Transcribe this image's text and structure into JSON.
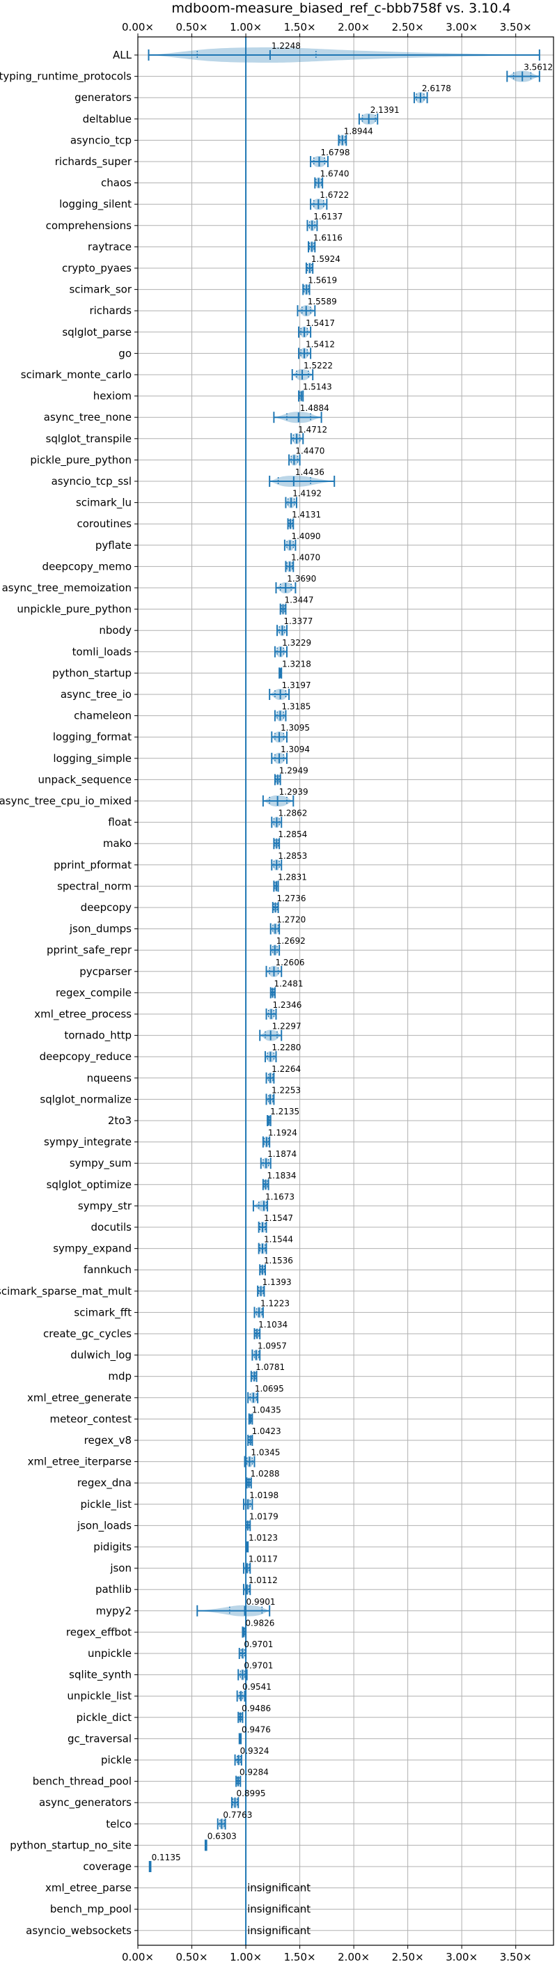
{
  "chart_data": {
    "type": "violin",
    "title": "mdboom-measure_biased_ref_c-bbb758f vs. 3.10.4",
    "xlim": [
      0.0,
      3.85
    ],
    "x_ticks": [
      0,
      0.5,
      1,
      1.5,
      2,
      2.5,
      3,
      3.5
    ],
    "x_tick_labels": [
      "0.00×",
      "0.50×",
      "1.00×",
      "1.50×",
      "2.00×",
      "2.50×",
      "3.00×",
      "3.50×"
    ],
    "reference_line": 1.0,
    "grid": true,
    "insignificant_label": "insignificant",
    "benchmarks": [
      {
        "name": "ALL",
        "label": "1.2248",
        "mean": 1.2248,
        "min": 0.1,
        "max": 3.72,
        "lo": 0.55,
        "hi": 1.65
      },
      {
        "name": "typing_runtime_protocols",
        "label": "3.5612",
        "mean": 3.5612,
        "min": 3.42,
        "max": 3.72,
        "lo": 3.48,
        "hi": 3.64
      },
      {
        "name": "generators",
        "label": "2.6178",
        "mean": 2.6178,
        "min": 2.56,
        "max": 2.68,
        "lo": 2.58,
        "hi": 2.65
      },
      {
        "name": "deltablue",
        "label": "2.1391",
        "mean": 2.1391,
        "min": 2.05,
        "max": 2.22,
        "lo": 2.08,
        "hi": 2.2
      },
      {
        "name": "asyncio_tcp",
        "label": "1.8944",
        "mean": 1.8944,
        "min": 1.86,
        "max": 1.93,
        "lo": 1.87,
        "hi": 1.92
      },
      {
        "name": "richards_super",
        "label": "1.6798",
        "mean": 1.6798,
        "min": 1.6,
        "max": 1.76,
        "lo": 1.63,
        "hi": 1.73
      },
      {
        "name": "chaos",
        "label": "1.6740",
        "mean": 1.674,
        "min": 1.64,
        "max": 1.71,
        "lo": 1.65,
        "hi": 1.7
      },
      {
        "name": "logging_silent",
        "label": "1.6722",
        "mean": 1.6722,
        "min": 1.6,
        "max": 1.75,
        "lo": 1.63,
        "hi": 1.72
      },
      {
        "name": "comprehensions",
        "label": "1.6137",
        "mean": 1.6137,
        "min": 1.57,
        "max": 1.66,
        "lo": 1.59,
        "hi": 1.64
      },
      {
        "name": "raytrace",
        "label": "1.6116",
        "mean": 1.6116,
        "min": 1.58,
        "max": 1.64,
        "lo": 1.59,
        "hi": 1.63
      },
      {
        "name": "crypto_pyaes",
        "label": "1.5924",
        "mean": 1.5924,
        "min": 1.56,
        "max": 1.62,
        "lo": 1.57,
        "hi": 1.61
      },
      {
        "name": "scimark_sor",
        "label": "1.5619",
        "mean": 1.5619,
        "min": 1.53,
        "max": 1.59,
        "lo": 1.54,
        "hi": 1.58
      },
      {
        "name": "richards",
        "label": "1.5589",
        "mean": 1.5589,
        "min": 1.48,
        "max": 1.64,
        "lo": 1.52,
        "hi": 1.6
      },
      {
        "name": "sqlglot_parse",
        "label": "1.5417",
        "mean": 1.5417,
        "min": 1.49,
        "max": 1.6,
        "lo": 1.51,
        "hi": 1.57
      },
      {
        "name": "go",
        "label": "1.5412",
        "mean": 1.5412,
        "min": 1.49,
        "max": 1.6,
        "lo": 1.51,
        "hi": 1.57
      },
      {
        "name": "scimark_monte_carlo",
        "label": "1.5222",
        "mean": 1.5222,
        "min": 1.43,
        "max": 1.62,
        "lo": 1.47,
        "hi": 1.58
      },
      {
        "name": "hexiom",
        "label": "1.5143",
        "mean": 1.5143,
        "min": 1.49,
        "max": 1.53,
        "lo": 1.5,
        "hi": 1.53
      },
      {
        "name": "async_tree_none",
        "label": "1.4884",
        "mean": 1.4884,
        "min": 1.26,
        "max": 1.7,
        "lo": 1.38,
        "hi": 1.6
      },
      {
        "name": "sqlglot_transpile",
        "label": "1.4712",
        "mean": 1.4712,
        "min": 1.42,
        "max": 1.53,
        "lo": 1.44,
        "hi": 1.5
      },
      {
        "name": "pickle_pure_python",
        "label": "1.4470",
        "mean": 1.447,
        "min": 1.4,
        "max": 1.5,
        "lo": 1.42,
        "hi": 1.48
      },
      {
        "name": "asyncio_tcp_ssl",
        "label": "1.4436",
        "mean": 1.4436,
        "min": 1.22,
        "max": 1.82,
        "lo": 1.3,
        "hi": 1.6
      },
      {
        "name": "scimark_lu",
        "label": "1.4192",
        "mean": 1.4192,
        "min": 1.37,
        "max": 1.47,
        "lo": 1.39,
        "hi": 1.45
      },
      {
        "name": "coroutines",
        "label": "1.4131",
        "mean": 1.4131,
        "min": 1.39,
        "max": 1.44,
        "lo": 1.4,
        "hi": 1.43
      },
      {
        "name": "pyflate",
        "label": "1.4090",
        "mean": 1.409,
        "min": 1.36,
        "max": 1.46,
        "lo": 1.38,
        "hi": 1.44
      },
      {
        "name": "deepcopy_memo",
        "label": "1.4070",
        "mean": 1.407,
        "min": 1.37,
        "max": 1.44,
        "lo": 1.38,
        "hi": 1.43
      },
      {
        "name": "async_tree_memoization",
        "label": "1.3690",
        "mean": 1.369,
        "min": 1.28,
        "max": 1.46,
        "lo": 1.32,
        "hi": 1.42
      },
      {
        "name": "unpickle_pure_python",
        "label": "1.3447",
        "mean": 1.3447,
        "min": 1.32,
        "max": 1.37,
        "lo": 1.33,
        "hi": 1.36
      },
      {
        "name": "nbody",
        "label": "1.3377",
        "mean": 1.3377,
        "min": 1.29,
        "max": 1.38,
        "lo": 1.31,
        "hi": 1.36
      },
      {
        "name": "tomli_loads",
        "label": "1.3229",
        "mean": 1.3229,
        "min": 1.27,
        "max": 1.38,
        "lo": 1.29,
        "hi": 1.35
      },
      {
        "name": "python_startup",
        "label": "1.3218",
        "mean": 1.3218,
        "min": 1.31,
        "max": 1.33,
        "lo": 1.315,
        "hi": 1.33
      },
      {
        "name": "async_tree_io",
        "label": "1.3197",
        "mean": 1.3197,
        "min": 1.22,
        "max": 1.4,
        "lo": 1.27,
        "hi": 1.37
      },
      {
        "name": "chameleon",
        "label": "1.3185",
        "mean": 1.3185,
        "min": 1.27,
        "max": 1.37,
        "lo": 1.29,
        "hi": 1.35
      },
      {
        "name": "logging_format",
        "label": "1.3095",
        "mean": 1.3095,
        "min": 1.24,
        "max": 1.38,
        "lo": 1.27,
        "hi": 1.35
      },
      {
        "name": "logging_simple",
        "label": "1.3094",
        "mean": 1.3094,
        "min": 1.24,
        "max": 1.38,
        "lo": 1.27,
        "hi": 1.35
      },
      {
        "name": "unpack_sequence",
        "label": "1.2949",
        "mean": 1.2949,
        "min": 1.27,
        "max": 1.32,
        "lo": 1.28,
        "hi": 1.31
      },
      {
        "name": "async_tree_cpu_io_mixed",
        "label": "1.2939",
        "mean": 1.2939,
        "min": 1.16,
        "max": 1.44,
        "lo": 1.22,
        "hi": 1.38
      },
      {
        "name": "float",
        "label": "1.2862",
        "mean": 1.2862,
        "min": 1.24,
        "max": 1.33,
        "lo": 1.26,
        "hi": 1.31
      },
      {
        "name": "mako",
        "label": "1.2854",
        "mean": 1.2854,
        "min": 1.26,
        "max": 1.31,
        "lo": 1.27,
        "hi": 1.3
      },
      {
        "name": "pprint_pformat",
        "label": "1.2853",
        "mean": 1.2853,
        "min": 1.24,
        "max": 1.33,
        "lo": 1.26,
        "hi": 1.31
      },
      {
        "name": "spectral_norm",
        "label": "1.2831",
        "mean": 1.2831,
        "min": 1.26,
        "max": 1.3,
        "lo": 1.27,
        "hi": 1.3
      },
      {
        "name": "deepcopy",
        "label": "1.2736",
        "mean": 1.2736,
        "min": 1.25,
        "max": 1.3,
        "lo": 1.26,
        "hi": 1.29
      },
      {
        "name": "json_dumps",
        "label": "1.2720",
        "mean": 1.272,
        "min": 1.23,
        "max": 1.31,
        "lo": 1.25,
        "hi": 1.3
      },
      {
        "name": "pprint_safe_repr",
        "label": "1.2692",
        "mean": 1.2692,
        "min": 1.23,
        "max": 1.31,
        "lo": 1.25,
        "hi": 1.29
      },
      {
        "name": "pycparser",
        "label": "1.2606",
        "mean": 1.2606,
        "min": 1.19,
        "max": 1.33,
        "lo": 1.22,
        "hi": 1.3
      },
      {
        "name": "regex_compile",
        "label": "1.2481",
        "mean": 1.2481,
        "min": 1.23,
        "max": 1.27,
        "lo": 1.24,
        "hi": 1.26
      },
      {
        "name": "xml_etree_process",
        "label": "1.2346",
        "mean": 1.2346,
        "min": 1.19,
        "max": 1.28,
        "lo": 1.21,
        "hi": 1.26
      },
      {
        "name": "tornado_http",
        "label": "1.2297",
        "mean": 1.2297,
        "min": 1.13,
        "max": 1.33,
        "lo": 1.18,
        "hi": 1.29
      },
      {
        "name": "deepcopy_reduce",
        "label": "1.2280",
        "mean": 1.228,
        "min": 1.18,
        "max": 1.28,
        "lo": 1.2,
        "hi": 1.26
      },
      {
        "name": "nqueens",
        "label": "1.2264",
        "mean": 1.2264,
        "min": 1.19,
        "max": 1.26,
        "lo": 1.21,
        "hi": 1.25
      },
      {
        "name": "sqlglot_normalize",
        "label": "1.2253",
        "mean": 1.2253,
        "min": 1.19,
        "max": 1.26,
        "lo": 1.21,
        "hi": 1.25
      },
      {
        "name": "2to3",
        "label": "1.2135",
        "mean": 1.2135,
        "min": 1.2,
        "max": 1.23,
        "lo": 1.205,
        "hi": 1.225
      },
      {
        "name": "sympy_integrate",
        "label": "1.1924",
        "mean": 1.1924,
        "min": 1.16,
        "max": 1.22,
        "lo": 1.17,
        "hi": 1.21
      },
      {
        "name": "sympy_sum",
        "label": "1.1874",
        "mean": 1.1874,
        "min": 1.14,
        "max": 1.23,
        "lo": 1.16,
        "hi": 1.21
      },
      {
        "name": "sqlglot_optimize",
        "label": "1.1834",
        "mean": 1.1834,
        "min": 1.16,
        "max": 1.21,
        "lo": 1.17,
        "hi": 1.2
      },
      {
        "name": "sympy_str",
        "label": "1.1673",
        "mean": 1.1673,
        "min": 1.07,
        "max": 1.2,
        "lo": 1.12,
        "hi": 1.19
      },
      {
        "name": "docutils",
        "label": "1.1547",
        "mean": 1.1547,
        "min": 1.12,
        "max": 1.19,
        "lo": 1.13,
        "hi": 1.18
      },
      {
        "name": "sympy_expand",
        "label": "1.1544",
        "mean": 1.1544,
        "min": 1.12,
        "max": 1.19,
        "lo": 1.13,
        "hi": 1.18
      },
      {
        "name": "fannkuch",
        "label": "1.1536",
        "mean": 1.1536,
        "min": 1.13,
        "max": 1.18,
        "lo": 1.14,
        "hi": 1.17
      },
      {
        "name": "scimark_sparse_mat_mult",
        "label": "1.1393",
        "mean": 1.1393,
        "min": 1.11,
        "max": 1.17,
        "lo": 1.12,
        "hi": 1.16
      },
      {
        "name": "scimark_fft",
        "label": "1.1223",
        "mean": 1.1223,
        "min": 1.08,
        "max": 1.16,
        "lo": 1.1,
        "hi": 1.15
      },
      {
        "name": "create_gc_cycles",
        "label": "1.1034",
        "mean": 1.1034,
        "min": 1.08,
        "max": 1.13,
        "lo": 1.09,
        "hi": 1.12
      },
      {
        "name": "dulwich_log",
        "label": "1.0957",
        "mean": 1.0957,
        "min": 1.06,
        "max": 1.13,
        "lo": 1.08,
        "hi": 1.12
      },
      {
        "name": "mdp",
        "label": "1.0781",
        "mean": 1.0781,
        "min": 1.05,
        "max": 1.1,
        "lo": 1.06,
        "hi": 1.09
      },
      {
        "name": "xml_etree_generate",
        "label": "1.0695",
        "mean": 1.0695,
        "min": 1.02,
        "max": 1.11,
        "lo": 1.04,
        "hi": 1.1
      },
      {
        "name": "meteor_contest",
        "label": "1.0435",
        "mean": 1.0435,
        "min": 1.03,
        "max": 1.06,
        "lo": 1.035,
        "hi": 1.05
      },
      {
        "name": "regex_v8",
        "label": "1.0423",
        "mean": 1.0423,
        "min": 1.02,
        "max": 1.06,
        "lo": 1.03,
        "hi": 1.055
      },
      {
        "name": "xml_etree_iterparse",
        "label": "1.0345",
        "mean": 1.0345,
        "min": 0.99,
        "max": 1.08,
        "lo": 1.01,
        "hi": 1.06
      },
      {
        "name": "regex_dna",
        "label": "1.0288",
        "mean": 1.0288,
        "min": 1.01,
        "max": 1.05,
        "lo": 1.02,
        "hi": 1.04
      },
      {
        "name": "pickle_list",
        "label": "1.0198",
        "mean": 1.0198,
        "min": 0.98,
        "max": 1.06,
        "lo": 1.0,
        "hi": 1.04
      },
      {
        "name": "json_loads",
        "label": "1.0179",
        "mean": 1.0179,
        "min": 1.0,
        "max": 1.04,
        "lo": 1.01,
        "hi": 1.03
      },
      {
        "name": "pidigits",
        "label": "1.0123",
        "mean": 1.0123,
        "min": 1.005,
        "max": 1.02,
        "lo": 1.008,
        "hi": 1.017
      },
      {
        "name": "json",
        "label": "1.0117",
        "mean": 1.0117,
        "min": 0.98,
        "max": 1.04,
        "lo": 1.0,
        "hi": 1.03
      },
      {
        "name": "pathlib",
        "label": "1.0112",
        "mean": 1.0112,
        "min": 0.98,
        "max": 1.04,
        "lo": 1.0,
        "hi": 1.03
      },
      {
        "name": "mypy2",
        "label": "0.9901",
        "mean": 0.9901,
        "min": 0.55,
        "max": 1.22,
        "lo": 0.85,
        "hi": 1.15
      },
      {
        "name": "regex_effbot",
        "label": "0.9826",
        "mean": 0.9826,
        "min": 0.97,
        "max": 1.0,
        "lo": 0.975,
        "hi": 0.99
      },
      {
        "name": "unpickle",
        "label": "0.9701",
        "mean": 0.9701,
        "min": 0.94,
        "max": 1.0,
        "lo": 0.955,
        "hi": 0.99
      },
      {
        "name": "sqlite_synth",
        "label": "0.9701",
        "mean": 0.9701,
        "min": 0.93,
        "max": 1.01,
        "lo": 0.95,
        "hi": 0.99
      },
      {
        "name": "unpickle_list",
        "label": "0.9541",
        "mean": 0.9541,
        "min": 0.92,
        "max": 0.99,
        "lo": 0.94,
        "hi": 0.97
      },
      {
        "name": "pickle_dict",
        "label": "0.9486",
        "mean": 0.9486,
        "min": 0.93,
        "max": 0.97,
        "lo": 0.94,
        "hi": 0.96
      },
      {
        "name": "gc_traversal",
        "label": "0.9476",
        "mean": 0.9476,
        "min": 0.94,
        "max": 0.955,
        "lo": 0.943,
        "hi": 0.952
      },
      {
        "name": "pickle",
        "label": "0.9324",
        "mean": 0.9324,
        "min": 0.9,
        "max": 0.96,
        "lo": 0.92,
        "hi": 0.95
      },
      {
        "name": "bench_thread_pool",
        "label": "0.9284",
        "mean": 0.9284,
        "min": 0.91,
        "max": 0.95,
        "lo": 0.92,
        "hi": 0.94
      },
      {
        "name": "async_generators",
        "label": "0.8995",
        "mean": 0.8995,
        "min": 0.87,
        "max": 0.93,
        "lo": 0.88,
        "hi": 0.92
      },
      {
        "name": "telco",
        "label": "0.7763",
        "mean": 0.7763,
        "min": 0.74,
        "max": 0.81,
        "lo": 0.76,
        "hi": 0.8
      },
      {
        "name": "python_startup_no_site",
        "label": "0.6303",
        "mean": 0.6303,
        "min": 0.625,
        "max": 0.636,
        "lo": 0.628,
        "hi": 0.633
      },
      {
        "name": "coverage",
        "label": "0.1135",
        "mean": 0.1135,
        "min": 0.108,
        "max": 0.119,
        "lo": 0.11,
        "hi": 0.117
      },
      {
        "name": "xml_etree_parse",
        "label": "",
        "insignificant": true
      },
      {
        "name": "bench_mp_pool",
        "label": "",
        "insignificant": true
      },
      {
        "name": "asyncio_websockets",
        "label": "",
        "insignificant": true
      }
    ]
  }
}
